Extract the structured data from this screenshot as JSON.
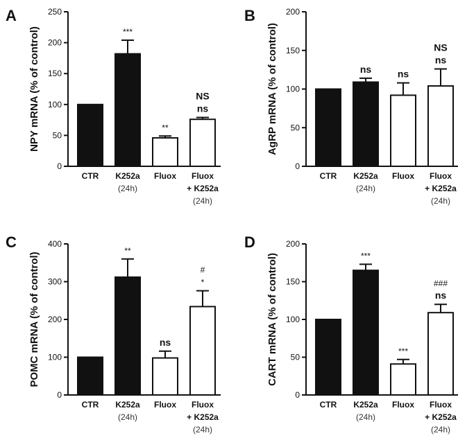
{
  "chart_data": [
    {
      "type": "bar",
      "panel": "A",
      "ylabel": "NPY mRNA (% of control)",
      "ylim": [
        0,
        250
      ],
      "yticks": [
        0,
        50,
        100,
        150,
        200,
        250
      ],
      "categories": [
        {
          "name": "CTR",
          "sub": []
        },
        {
          "name": "K252a",
          "sub": [
            "(24h)"
          ]
        },
        {
          "name": "Fluox",
          "sub": []
        },
        {
          "name": "Fluox",
          "sub": [
            "+ K252a",
            "(24h)"
          ]
        }
      ],
      "values": [
        100,
        182,
        46,
        76
      ],
      "errors": [
        0,
        22,
        3,
        3
      ],
      "fills": [
        "#111111",
        "#111111",
        "#ffffff",
        "#ffffff"
      ],
      "annotations": [
        [],
        [
          "***"
        ],
        [
          "**"
        ],
        [
          "NS",
          "ns"
        ]
      ]
    },
    {
      "type": "bar",
      "panel": "B",
      "ylabel": "AgRP mRNA (% of control)",
      "ylim": [
        0,
        200
      ],
      "yticks": [
        0,
        50,
        100,
        150,
        200
      ],
      "categories": [
        {
          "name": "CTR",
          "sub": []
        },
        {
          "name": "K252a",
          "sub": [
            "(24h)"
          ]
        },
        {
          "name": "Fluox",
          "sub": []
        },
        {
          "name": "Fluox",
          "sub": [
            "+ K252a",
            "(24h)"
          ]
        }
      ],
      "values": [
        100,
        109,
        92,
        104
      ],
      "errors": [
        0,
        5,
        16,
        22
      ],
      "fills": [
        "#111111",
        "#111111",
        "#ffffff",
        "#ffffff"
      ],
      "annotations": [
        [],
        [
          "ns"
        ],
        [
          "ns"
        ],
        [
          "NS",
          "ns"
        ]
      ]
    },
    {
      "type": "bar",
      "panel": "C",
      "ylabel": "POMC mRNA (% of control)",
      "ylim": [
        0,
        400
      ],
      "yticks": [
        0,
        100,
        200,
        300,
        400
      ],
      "categories": [
        {
          "name": "CTR",
          "sub": []
        },
        {
          "name": "K252a",
          "sub": [
            "(24h)"
          ]
        },
        {
          "name": "Fluox",
          "sub": []
        },
        {
          "name": "Fluox",
          "sub": [
            "+ K252a",
            "(24h)"
          ]
        }
      ],
      "values": [
        100,
        312,
        98,
        234
      ],
      "errors": [
        0,
        48,
        18,
        42
      ],
      "fills": [
        "#111111",
        "#111111",
        "#ffffff",
        "#ffffff"
      ],
      "annotations": [
        [],
        [
          "**"
        ],
        [
          "ns"
        ],
        [
          "#",
          "*"
        ]
      ]
    },
    {
      "type": "bar",
      "panel": "D",
      "ylabel": "CART mRNA (% of control)",
      "ylim": [
        0,
        200
      ],
      "yticks": [
        0,
        50,
        100,
        150,
        200
      ],
      "categories": [
        {
          "name": "CTR",
          "sub": []
        },
        {
          "name": "K252a",
          "sub": [
            "(24h)"
          ]
        },
        {
          "name": "Fluox",
          "sub": []
        },
        {
          "name": "Fluox",
          "sub": [
            "+ K252a",
            "(24h)"
          ]
        }
      ],
      "values": [
        100,
        165,
        41,
        109
      ],
      "errors": [
        0,
        8,
        6,
        11
      ],
      "fills": [
        "#111111",
        "#111111",
        "#ffffff",
        "#ffffff"
      ],
      "annotations": [
        [],
        [
          "***"
        ],
        [
          "***"
        ],
        [
          "###",
          "ns"
        ]
      ]
    }
  ]
}
